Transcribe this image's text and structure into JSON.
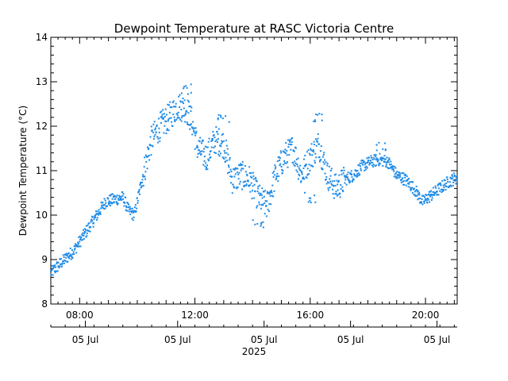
{
  "chart_data": {
    "type": "scatter",
    "title": "Dewpoint Temperature at RASC Victoria Centre",
    "ylabel": "Dewpoint Temperature (°C)",
    "xlabel": "",
    "ylim": [
      8,
      14
    ],
    "xlim_hours": [
      7.0,
      21.1
    ],
    "y_ticks": [
      8,
      9,
      10,
      11,
      12,
      13,
      14
    ],
    "y_tick_labels": [
      "8",
      "9",
      "10",
      "11",
      "12",
      "13",
      "14"
    ],
    "time_ticks": [
      8,
      12,
      16,
      20
    ],
    "time_tick_labels": [
      "08:00",
      "12:00",
      "16:00",
      "20:00"
    ],
    "date_ticks": [
      8.2,
      11.4,
      14.4,
      17.4,
      20.4
    ],
    "date_tick_labels": [
      "05 Jul",
      "05 Jul",
      "05 Jul",
      "05 Jul",
      "05 Jul"
    ],
    "year_label": "2025",
    "grid": false,
    "marker_color": "#1e8be6",
    "trend": [
      [
        7.0,
        8.7
      ],
      [
        7.4,
        8.95
      ],
      [
        7.8,
        9.2
      ],
      [
        8.2,
        9.6
      ],
      [
        8.6,
        10.0
      ],
      [
        8.9,
        10.3
      ],
      [
        9.2,
        10.35
      ],
      [
        9.5,
        10.4
      ],
      [
        9.7,
        10.1
      ],
      [
        9.9,
        10.0
      ],
      [
        10.2,
        10.9
      ],
      [
        10.5,
        11.7
      ],
      [
        10.8,
        12.0
      ],
      [
        11.1,
        12.2
      ],
      [
        11.4,
        12.45
      ],
      [
        11.7,
        12.4
      ],
      [
        11.9,
        12.1
      ],
      [
        12.1,
        11.5
      ],
      [
        12.4,
        11.3
      ],
      [
        12.7,
        11.7
      ],
      [
        13.0,
        11.6
      ],
      [
        13.3,
        10.8
      ],
      [
        13.6,
        10.9
      ],
      [
        13.9,
        10.8
      ],
      [
        14.2,
        10.4
      ],
      [
        14.5,
        10.2
      ],
      [
        14.8,
        10.9
      ],
      [
        15.1,
        11.3
      ],
      [
        15.4,
        11.5
      ],
      [
        15.7,
        10.9
      ],
      [
        16.0,
        11.3
      ],
      [
        16.3,
        11.6
      ],
      [
        16.6,
        10.9
      ],
      [
        16.9,
        10.6
      ],
      [
        17.2,
        10.8
      ],
      [
        17.5,
        10.9
      ],
      [
        17.8,
        11.1
      ],
      [
        18.1,
        11.2
      ],
      [
        18.4,
        11.25
      ],
      [
        18.7,
        11.2
      ],
      [
        19.0,
        10.9
      ],
      [
        19.3,
        10.8
      ],
      [
        19.6,
        10.6
      ],
      [
        19.9,
        10.3
      ],
      [
        20.2,
        10.45
      ],
      [
        20.5,
        10.6
      ],
      [
        20.8,
        10.75
      ],
      [
        21.1,
        10.85
      ]
    ],
    "clusters": [
      [
        11.7,
        12.85,
        0.15
      ],
      [
        13.0,
        12.15,
        0.12
      ],
      [
        14.2,
        9.8,
        0.12
      ],
      [
        16.3,
        12.2,
        0.1
      ],
      [
        18.5,
        11.55,
        0.1
      ],
      [
        16.0,
        10.4,
        0.12
      ]
    ]
  }
}
